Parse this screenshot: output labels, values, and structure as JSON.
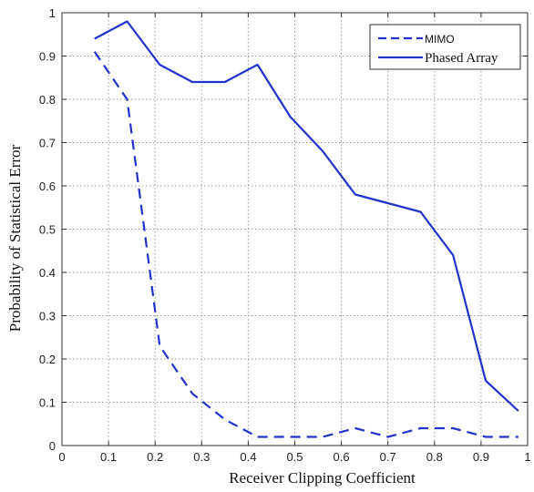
{
  "chart_data": {
    "type": "line",
    "title": "",
    "xlabel": "Receiver Clipping Coefficient",
    "ylabel": "Probability of Statistical Error",
    "xlim": [
      0,
      1
    ],
    "ylim": [
      0,
      1
    ],
    "xticks": [
      "0",
      "0.1",
      "0.2",
      "0.3",
      "0.4",
      "0.5",
      "0.6",
      "0.7",
      "0.8",
      "0.9",
      "1"
    ],
    "yticks": [
      "0",
      "0.1",
      "0.2",
      "0.3",
      "0.4",
      "0.5",
      "0.6",
      "0.7",
      "0.8",
      "0.9",
      "1"
    ],
    "grid": true,
    "legend_position": "top-right",
    "series": [
      {
        "name": "MIMO",
        "style": "dashed",
        "color": "#2233cc",
        "x": [
          0.07,
          0.14,
          0.21,
          0.28,
          0.35,
          0.42,
          0.49,
          0.56,
          0.63,
          0.7,
          0.77,
          0.84,
          0.91,
          0.98
        ],
        "y": [
          0.91,
          0.8,
          0.23,
          0.12,
          0.06,
          0.02,
          0.02,
          0.02,
          0.04,
          0.02,
          0.04,
          0.04,
          0.02,
          0.02
        ]
      },
      {
        "name": "Phased Array",
        "style": "solid",
        "color": "#2233cc",
        "x": [
          0.07,
          0.14,
          0.21,
          0.28,
          0.35,
          0.42,
          0.49,
          0.56,
          0.63,
          0.7,
          0.77,
          0.84,
          0.91,
          0.98
        ],
        "y": [
          0.94,
          0.98,
          0.88,
          0.84,
          0.84,
          0.88,
          0.76,
          0.68,
          0.58,
          0.56,
          0.54,
          0.44,
          0.15,
          0.08
        ]
      }
    ]
  }
}
